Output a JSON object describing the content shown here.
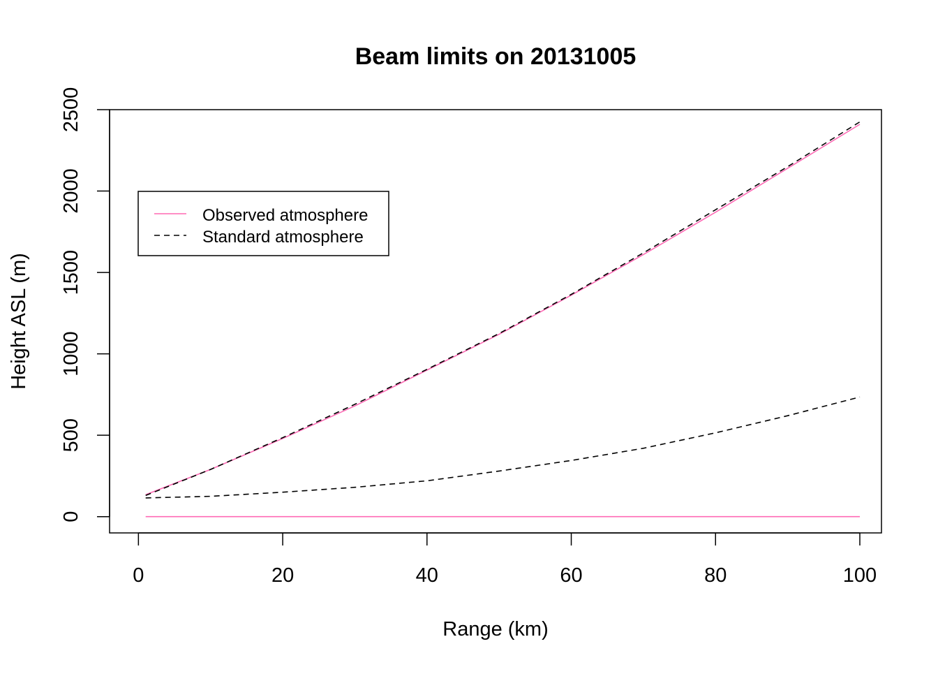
{
  "chart_data": {
    "type": "line",
    "title": "Beam limits on 20131005",
    "xlabel": "Range (km)",
    "ylabel": "Height ASL (m)",
    "xlim": [
      -4,
      103
    ],
    "ylim": [
      -100,
      2500
    ],
    "xticks": [
      0,
      20,
      40,
      60,
      80,
      100
    ],
    "yticks": [
      0,
      500,
      1000,
      1500,
      2000,
      2500
    ],
    "grid": false,
    "legend_position": "top-left",
    "legend": [
      {
        "label": "Observed atmosphere",
        "color": "#ff69b4",
        "dash": "solid"
      },
      {
        "label": "Standard atmosphere",
        "color": "#000000",
        "dash": "dashed"
      }
    ],
    "series": [
      {
        "name": "Observed atmosphere",
        "role": "upper",
        "color": "#ff69b4",
        "dash": "solid",
        "x": [
          1,
          10,
          20,
          30,
          40,
          50,
          60,
          70,
          80,
          90,
          100
        ],
        "y": [
          135,
          290,
          480,
          680,
          900,
          1120,
          1360,
          1610,
          1870,
          2140,
          2410
        ]
      },
      {
        "name": "Observed atmosphere",
        "role": "lower",
        "color": "#ff69b4",
        "dash": "solid",
        "x": [
          1,
          100
        ],
        "y": [
          0,
          0
        ]
      },
      {
        "name": "Standard atmosphere",
        "role": "upper",
        "color": "#000000",
        "dash": "dashed",
        "x": [
          1,
          10,
          20,
          30,
          40,
          50,
          60,
          70,
          80,
          90,
          100
        ],
        "y": [
          130,
          290,
          485,
          690,
          905,
          1125,
          1365,
          1620,
          1885,
          2150,
          2425
        ]
      },
      {
        "name": "Standard atmosphere",
        "role": "lower",
        "color": "#000000",
        "dash": "dashed",
        "x": [
          1,
          10,
          20,
          30,
          40,
          50,
          60,
          70,
          80,
          90,
          100
        ],
        "y": [
          115,
          125,
          150,
          180,
          220,
          280,
          345,
          420,
          515,
          620,
          735
        ]
      }
    ]
  }
}
